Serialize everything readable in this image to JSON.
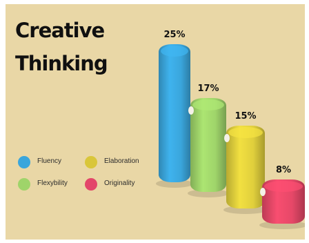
{
  "title": {
    "line1": "Creative",
    "line2": "Thinking"
  },
  "chart_data": {
    "type": "bar",
    "categories": [
      "Fluency",
      "Flexybility",
      "Elaboration",
      "Originality"
    ],
    "values": [
      25,
      17,
      15,
      8
    ],
    "value_labels": [
      "25%",
      "17%",
      "15%",
      "8%"
    ],
    "ylim": [
      0,
      25
    ],
    "legend_placement": "bottom-left",
    "colors": [
      "#3aa6dc",
      "#9fd46a",
      "#e0cf3c",
      "#e64868"
    ]
  },
  "legend": [
    {
      "label": "Fluency",
      "color": "#3aa6dc"
    },
    {
      "label": "Elaboration",
      "color": "#d9c63a"
    },
    {
      "label": "Flexybility",
      "color": "#9fd46a"
    },
    {
      "label": "Originality",
      "color": "#e3466a"
    }
  ]
}
